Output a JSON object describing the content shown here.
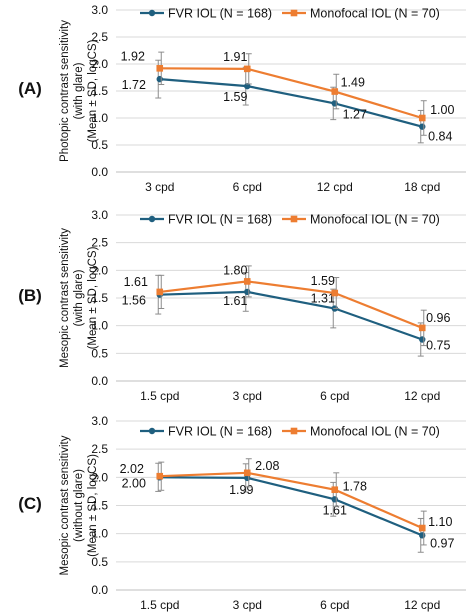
{
  "chart_data": [
    {
      "type": "line",
      "panel": "(A)",
      "ylabel": [
        "Photopic contrast sensitivity",
        "(with glare)",
        "(Mean ± SD, logCS)"
      ],
      "ylim": [
        0,
        3.0
      ],
      "yticks": [
        "0.0",
        "0.5",
        "1.0",
        "1.5",
        "2.0",
        "2.5",
        "3.0"
      ],
      "categories": [
        "3 cpd",
        "6 cpd",
        "12 cpd",
        "18 cpd"
      ],
      "legend_position": "top",
      "grid": "horizontal",
      "series": [
        {
          "name": "FVR IOL (N = 168)",
          "color": "#1f5f7f",
          "values": [
            1.72,
            1.59,
            1.27,
            0.84
          ],
          "labels": [
            "1.72",
            "1.59",
            "1.27",
            "0.84"
          ],
          "sd": [
            0.35,
            0.35,
            0.3,
            0.3
          ]
        },
        {
          "name": "Monofocal IOL (N = 70)",
          "color": "#ed7d31",
          "values": [
            1.92,
            1.91,
            1.49,
            1.0
          ],
          "labels": [
            "1.92",
            "1.91",
            "1.49",
            "1.00"
          ],
          "sd": [
            0.3,
            0.28,
            0.32,
            0.32
          ]
        }
      ]
    },
    {
      "type": "line",
      "panel": "(B)",
      "ylabel": [
        "Mesopic contrast sensitivity",
        "(with glare)",
        "(Mean ± SD, logCS)"
      ],
      "ylim": [
        0,
        3.0
      ],
      "yticks": [
        "0.0",
        "0.5",
        "1.0",
        "1.5",
        "2.0",
        "2.5",
        "3.0"
      ],
      "categories": [
        "1.5 cpd",
        "3 cpd",
        "6 cpd",
        "12 cpd"
      ],
      "legend_position": "top",
      "grid": "horizontal",
      "series": [
        {
          "name": "FVR IOL (N = 168)",
          "color": "#1f5f7f",
          "values": [
            1.56,
            1.61,
            1.31,
            0.75
          ],
          "labels": [
            "1.56",
            "1.61",
            "1.31",
            "0.75"
          ],
          "sd": [
            0.35,
            0.35,
            0.35,
            0.3
          ]
        },
        {
          "name": "Monofocal IOL (N = 70)",
          "color": "#ed7d31",
          "values": [
            1.61,
            1.8,
            1.59,
            0.96
          ],
          "labels": [
            "1.61",
            "1.80",
            "1.59",
            "0.96"
          ],
          "sd": [
            0.3,
            0.28,
            0.28,
            0.32
          ]
        }
      ]
    },
    {
      "type": "line",
      "panel": "(C)",
      "ylabel": [
        "Mesopic contrast sensitivity",
        "(without glare)",
        "(Mean ± SD, logCS)"
      ],
      "ylim": [
        0,
        3.0
      ],
      "yticks": [
        "0.0",
        "0.5",
        "1.0",
        "1.5",
        "2.0",
        "2.5",
        "3.0"
      ],
      "categories": [
        "1.5 cpd",
        "3 cpd",
        "6 cpd",
        "12 cpd"
      ],
      "legend_position": "top",
      "grid": "horizontal",
      "series": [
        {
          "name": "FVR IOL (N = 168)",
          "color": "#1f5f7f",
          "values": [
            2.0,
            1.99,
            1.61,
            0.97
          ],
          "labels": [
            "2.00",
            "1.99",
            "1.61",
            "0.97"
          ],
          "sd": [
            0.25,
            0.25,
            0.3,
            0.3
          ]
        },
        {
          "name": "Monofocal IOL (N = 70)",
          "color": "#ed7d31",
          "values": [
            2.02,
            2.08,
            1.78,
            1.1
          ],
          "labels": [
            "2.02",
            "2.08",
            "1.78",
            "1.10"
          ],
          "sd": [
            0.25,
            0.25,
            0.3,
            0.3
          ]
        }
      ]
    }
  ]
}
